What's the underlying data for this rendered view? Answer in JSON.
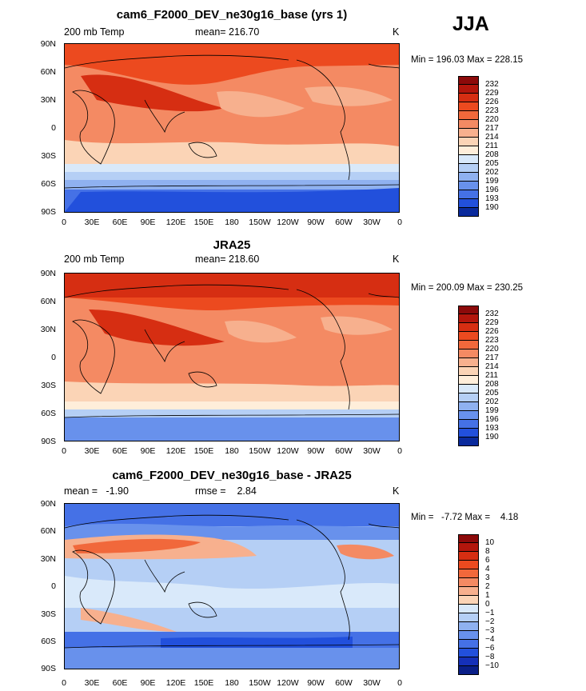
{
  "season": "JJA",
  "abs_levels": [
    "232",
    "229",
    "226",
    "223",
    "220",
    "217",
    "214",
    "211",
    "208",
    "205",
    "202",
    "199",
    "196",
    "193",
    "190"
  ],
  "abs_colors": [
    "#8c0a0a",
    "#b3160c",
    "#d62e12",
    "#ec4a1f",
    "#f1683b",
    "#f48a63",
    "#f7b08e",
    "#fbd4b6",
    "#ffeeda",
    "#d9e9fa",
    "#b5cff5",
    "#8fb1f0",
    "#6891ec",
    "#4571e6",
    "#2250dc",
    "#0a2a9c"
  ],
  "diff_levels": [
    "10",
    "8",
    "6",
    "4",
    "3",
    "2",
    "1",
    "0",
    "−1",
    "−2",
    "−3",
    "−4",
    "−6",
    "−8",
    "−10"
  ],
  "diff_colors": [
    "#8c0a0a",
    "#b3160c",
    "#d62e12",
    "#ec4a1f",
    "#f1683b",
    "#f48a63",
    "#f7b08e",
    "#fbd4b6",
    "#d9e9fa",
    "#b5cff5",
    "#8fb1f0",
    "#6891ec",
    "#4571e6",
    "#2250dc",
    "#1530b8",
    "#0a1f88"
  ],
  "lat_labels": [
    "90N",
    "60N",
    "30N",
    "0",
    "30S",
    "60S",
    "90S"
  ],
  "lon_labels": [
    "0",
    "30E",
    "60E",
    "90E",
    "120E",
    "150E",
    "180",
    "150W",
    "120W",
    "90W",
    "60W",
    "30W",
    "0"
  ],
  "panels": [
    {
      "title": "cam6_F2000_DEV_ne30g16_base (yrs 1)",
      "left_label": "200 mb Temp",
      "center_label": "mean= 216.70",
      "right_label": "K",
      "minmax": "Min = 196.03 Max = 228.15",
      "kind": "abs"
    },
    {
      "title": "JRA25",
      "left_label": "200 mb Temp",
      "center_label": "mean= 218.60",
      "right_label": "K",
      "minmax": "Min = 200.09 Max = 230.25",
      "kind": "abs"
    },
    {
      "title": "cam6_F2000_DEV_ne30g16_base - JRA25",
      "left_label": "mean =   -1.90",
      "center_label": "rmse =    2.84",
      "right_label": "K",
      "minmax": "Min =   -7.72 Max =    4.18",
      "kind": "diff"
    }
  ]
}
